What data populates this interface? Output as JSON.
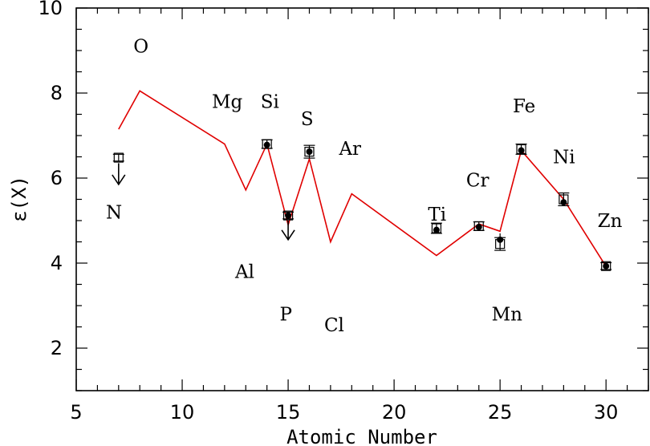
{
  "chart_data": {
    "type": "scatter",
    "title": "",
    "xlabel": "Atomic Number",
    "ylabel": "ε(X)",
    "xlim": [
      5,
      32
    ],
    "ylim": [
      1,
      10
    ],
    "x_ticks": [
      5,
      10,
      15,
      20,
      25,
      30
    ],
    "y_ticks": [
      2,
      4,
      6,
      8,
      10
    ],
    "grid": false,
    "model_line": {
      "color": "#e00000",
      "points": [
        [
          7,
          7.15
        ],
        [
          8,
          8.05
        ],
        [
          12,
          6.8
        ],
        [
          13,
          5.72
        ],
        [
          14,
          6.8
        ],
        [
          15,
          4.9
        ],
        [
          16,
          6.45
        ],
        [
          17,
          4.5
        ],
        [
          18,
          5.63
        ],
        [
          22,
          4.18
        ],
        [
          24,
          4.92
        ],
        [
          25,
          4.75
        ],
        [
          26,
          6.65
        ],
        [
          28,
          5.5
        ],
        [
          30,
          3.92
        ]
      ]
    },
    "observed_boxes": [
      {
        "x": 7,
        "y": 6.48,
        "err": 0.08
      },
      {
        "x": 14,
        "y": 6.8,
        "err": 0.1
      },
      {
        "x": 15,
        "y": 5.12,
        "err": 0.08
      },
      {
        "x": 16,
        "y": 6.62,
        "err": 0.15
      },
      {
        "x": 22,
        "y": 4.82,
        "err": 0.12
      },
      {
        "x": 24,
        "y": 4.87,
        "err": 0.1
      },
      {
        "x": 25,
        "y": 4.45,
        "err": 0.15
      },
      {
        "x": 26,
        "y": 6.68,
        "err": 0.12
      },
      {
        "x": 28,
        "y": 5.5,
        "err": 0.15
      },
      {
        "x": 30,
        "y": 3.93,
        "err": 0.08
      }
    ],
    "observed_dots": [
      {
        "x": 14,
        "y": 6.78
      },
      {
        "x": 15,
        "y": 5.12
      },
      {
        "x": 16,
        "y": 6.62
      },
      {
        "x": 22,
        "y": 4.78
      },
      {
        "x": 24,
        "y": 4.85
      },
      {
        "x": 25,
        "y": 4.55,
        "err": 0.15
      },
      {
        "x": 26,
        "y": 6.65
      },
      {
        "x": 28,
        "y": 5.43
      },
      {
        "x": 30,
        "y": 3.93
      }
    ],
    "upper_limits": [
      {
        "x": 7,
        "from": 6.35,
        "to": 5.85
      },
      {
        "x": 15,
        "from": 5.0,
        "to": 4.55
      }
    ],
    "element_labels": [
      {
        "text": "N",
        "x": 6.4,
        "y": 5.05
      },
      {
        "text": "O",
        "x": 7.7,
        "y": 8.95
      },
      {
        "text": "Mg",
        "x": 11.4,
        "y": 7.65
      },
      {
        "text": "Al",
        "x": 12.5,
        "y": 3.65
      },
      {
        "text": "Si",
        "x": 13.7,
        "y": 7.65
      },
      {
        "text": "P",
        "x": 14.6,
        "y": 2.65
      },
      {
        "text": "S",
        "x": 15.6,
        "y": 7.25
      },
      {
        "text": "Cl",
        "x": 16.7,
        "y": 2.4
      },
      {
        "text": "Ar",
        "x": 17.4,
        "y": 6.55
      },
      {
        "text": "Ti",
        "x": 21.6,
        "y": 5.0
      },
      {
        "text": "Cr",
        "x": 23.4,
        "y": 5.8
      },
      {
        "text": "Mn",
        "x": 24.6,
        "y": 2.65
      },
      {
        "text": "Fe",
        "x": 25.6,
        "y": 7.55
      },
      {
        "text": "Ni",
        "x": 27.5,
        "y": 6.35
      },
      {
        "text": "Zn",
        "x": 29.6,
        "y": 4.85
      }
    ]
  }
}
